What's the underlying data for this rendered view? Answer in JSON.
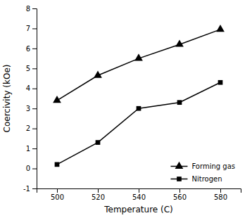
{
  "chart_data": {
    "type": "line",
    "xlabel": "Temperature (C)",
    "ylabel": "Coercivity (kOe)",
    "x": [
      500,
      520,
      540,
      560,
      580
    ],
    "series": [
      {
        "name": "Forming gas",
        "color": "#000000",
        "marker": "triangle",
        "values": [
          3.4,
          4.65,
          5.5,
          6.2,
          6.95
        ]
      },
      {
        "name": "Nitrogen",
        "color": "#000000",
        "marker": "square",
        "values": [
          0.2,
          1.3,
          3.0,
          3.3,
          4.3
        ]
      }
    ],
    "xlim": [
      490,
      590
    ],
    "xticks": [
      500,
      520,
      540,
      560,
      580
    ],
    "ylim": [
      -1,
      8
    ],
    "yticks": [
      -1,
      0,
      1,
      2,
      3,
      4,
      5,
      6,
      7,
      8
    ],
    "grid": false,
    "legend": "lower right"
  }
}
